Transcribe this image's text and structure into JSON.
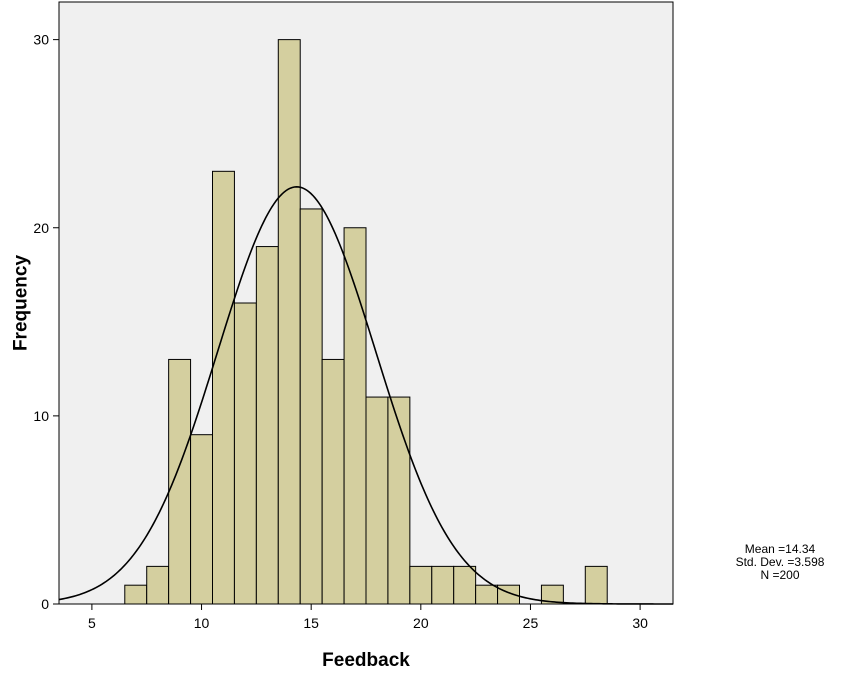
{
  "chart_data": {
    "type": "bar",
    "title": "",
    "xlabel": "Feedback",
    "ylabel": "Frequency",
    "xlim": [
      3.5,
      31.5
    ],
    "ylim": [
      0,
      32
    ],
    "xticks": [
      5,
      10,
      15,
      20,
      25,
      30
    ],
    "yticks": [
      0,
      10,
      20,
      30
    ],
    "bin_width": 1,
    "bins": [
      {
        "x0": 6.5,
        "x1": 7.5,
        "value": 1
      },
      {
        "x0": 7.5,
        "x1": 8.5,
        "value": 2
      },
      {
        "x0": 8.5,
        "x1": 9.5,
        "value": 13
      },
      {
        "x0": 9.5,
        "x1": 10.5,
        "value": 9
      },
      {
        "x0": 10.5,
        "x1": 11.5,
        "value": 23
      },
      {
        "x0": 11.5,
        "x1": 12.5,
        "value": 16
      },
      {
        "x0": 12.5,
        "x1": 13.5,
        "value": 19
      },
      {
        "x0": 13.5,
        "x1": 14.5,
        "value": 30
      },
      {
        "x0": 14.5,
        "x1": 15.5,
        "value": 21
      },
      {
        "x0": 15.5,
        "x1": 16.5,
        "value": 13
      },
      {
        "x0": 16.5,
        "x1": 17.5,
        "value": 20
      },
      {
        "x0": 17.5,
        "x1": 18.5,
        "value": 11
      },
      {
        "x0": 18.5,
        "x1": 19.5,
        "value": 11
      },
      {
        "x0": 19.5,
        "x1": 20.5,
        "value": 2
      },
      {
        "x0": 20.5,
        "x1": 21.5,
        "value": 2
      },
      {
        "x0": 21.5,
        "x1": 22.5,
        "value": 2
      },
      {
        "x0": 22.5,
        "x1": 23.5,
        "value": 1
      },
      {
        "x0": 23.5,
        "x1": 24.5,
        "value": 1
      },
      {
        "x0": 25.5,
        "x1": 26.5,
        "value": 1
      },
      {
        "x0": 27.5,
        "x1": 28.5,
        "value": 2
      }
    ],
    "normal_curve": {
      "mean": 14.34,
      "std_dev": 3.598,
      "n": 200
    },
    "grid": false,
    "colors": {
      "bar_fill": "#d4cf9f",
      "bar_stroke": "#000000",
      "plot_background": "#f0f0f0",
      "curve": "#000000"
    }
  },
  "stats": {
    "mean_text": "Mean =14.34",
    "std_dev_text": "Std. Dev. =3.598",
    "n_text": "N =200"
  }
}
